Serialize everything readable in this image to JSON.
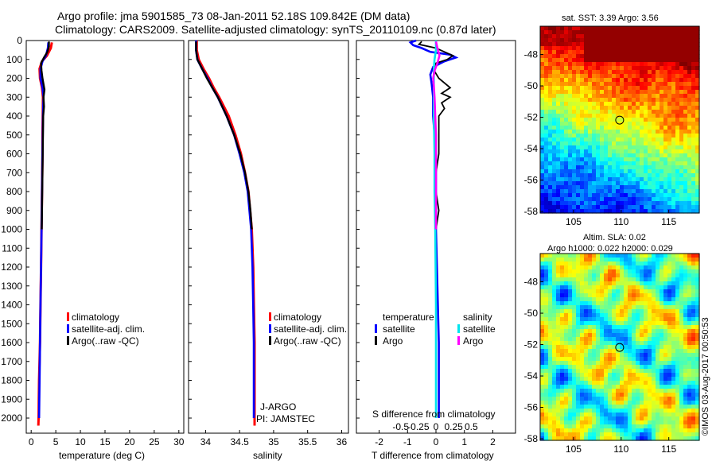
{
  "header": {
    "line1": "Argo profile: jma 5901585_73 08-Jan-2011 52.18S 109.842E (DM data)",
    "line2": "Climatology: CARS2009. Satellite-adjusted climatology: synTS_20110109.nc (0.87d later)"
  },
  "colors": {
    "climatology": "#ff0000",
    "satellite": "#0000ff",
    "argo": "#000000",
    "sal_satellite": "#00e5ee",
    "sal_argo": "#ff00ff"
  },
  "chart_data": [
    {
      "id": "temperature",
      "type": "line",
      "xlabel": "temperature (deg C)",
      "ylabel": "",
      "xlim": [
        -1,
        31
      ],
      "ylim": [
        2080,
        0
      ],
      "xticks": [
        0,
        5,
        10,
        15,
        20,
        25,
        30
      ],
      "yticks": [
        0,
        100,
        200,
        300,
        400,
        500,
        600,
        700,
        800,
        900,
        1000,
        1100,
        1200,
        1300,
        1400,
        1500,
        1600,
        1700,
        1800,
        1900,
        2000
      ],
      "legend": [
        "climatology",
        "satellite-adj. clim.",
        "Argo(..raw -QC)"
      ],
      "series": [
        {
          "name": "climatology",
          "depth": [
            10,
            40,
            80,
            110,
            150,
            200,
            250,
            300,
            400,
            500,
            600,
            800,
            1000,
            1200,
            1400,
            1600,
            1800,
            2000,
            2040
          ],
          "values": [
            4.2,
            4.0,
            3.2,
            2.2,
            1.7,
            1.8,
            2.2,
            2.4,
            2.35,
            2.3,
            2.3,
            2.2,
            2.1,
            2.0,
            1.9,
            1.8,
            1.6,
            1.5,
            1.45
          ]
        },
        {
          "name": "satellite-adj. clim.",
          "depth": [
            10,
            40,
            80,
            110,
            150,
            200,
            250,
            300,
            400,
            500,
            600,
            800,
            1000,
            1200,
            1400,
            1600,
            1800,
            2000
          ],
          "values": [
            3.5,
            3.4,
            3.0,
            2.3,
            1.9,
            1.9,
            2.3,
            2.5,
            2.4,
            2.35,
            2.3,
            2.2,
            2.1,
            2.0,
            1.9,
            1.8,
            1.7,
            1.6
          ]
        },
        {
          "name": "Argo(..raw -QC)",
          "depth": [
            5,
            30,
            60,
            90,
            120,
            160,
            200,
            260,
            300,
            350,
            400,
            500,
            600,
            700,
            800,
            900,
            1000
          ],
          "values": [
            3.6,
            3.6,
            3.3,
            2.6,
            2.0,
            2.1,
            2.3,
            2.7,
            2.5,
            2.6,
            2.45,
            2.4,
            2.35,
            2.3,
            2.25,
            2.2,
            2.15
          ]
        }
      ]
    },
    {
      "id": "salinity",
      "type": "line",
      "xlabel": "salinity",
      "xlim": [
        33.75,
        36.1
      ],
      "ylim": [
        2080,
        0
      ],
      "xticks": [
        34,
        34.5,
        35,
        35.5,
        36
      ],
      "xticklabels": [
        "34",
        "34.5",
        "35",
        "35.5",
        "36"
      ],
      "legend": [
        "climatology",
        "satellite-adj. clim.",
        "Argo(..raw -QC)"
      ],
      "annotation": [
        "J-ARGO",
        "PI: JAMSTEC"
      ],
      "series": [
        {
          "name": "climatology",
          "depth": [
            0,
            50,
            100,
            150,
            200,
            250,
            300,
            400,
            500,
            600,
            700,
            800,
            1000,
            1200,
            1400,
            1600,
            1800,
            2000,
            2040
          ],
          "values": [
            33.87,
            33.87,
            33.9,
            33.97,
            34.05,
            34.12,
            34.2,
            34.34,
            34.44,
            34.52,
            34.58,
            34.63,
            34.68,
            34.7,
            34.71,
            34.72,
            34.72,
            34.72,
            34.72
          ]
        },
        {
          "name": "satellite-adj. clim.",
          "depth": [
            0,
            50,
            100,
            150,
            200,
            250,
            300,
            400,
            500,
            600,
            700,
            800,
            1000,
            1200,
            1400,
            1600,
            1800,
            2000
          ],
          "values": [
            33.86,
            33.86,
            33.88,
            33.95,
            34.03,
            34.1,
            34.18,
            34.31,
            34.42,
            34.5,
            34.57,
            34.62,
            34.67,
            34.69,
            34.7,
            34.71,
            34.71,
            34.71
          ]
        },
        {
          "name": "Argo(..raw -QC)",
          "depth": [
            5,
            50,
            100,
            150,
            200,
            250,
            300,
            400,
            500,
            600,
            700,
            800,
            900,
            1000
          ],
          "values": [
            33.86,
            33.86,
            33.88,
            33.95,
            34.02,
            34.1,
            34.18,
            34.31,
            34.42,
            34.51,
            34.58,
            34.63,
            34.66,
            34.68
          ]
        }
      ]
    },
    {
      "id": "difference",
      "type": "line",
      "xlabel": "T difference from climatology",
      "xlabel2": "S difference from climatology",
      "xlim": [
        -2.8,
        2.8
      ],
      "xticks": [
        -2,
        -1,
        0,
        1,
        2
      ],
      "sticks": [
        -0.5,
        -0.25,
        0,
        0.25,
        0.5
      ],
      "sticklabels": [
        "-0.5",
        "-0.25",
        "0",
        "0.25",
        "0.5"
      ],
      "ylim": [
        2080,
        0
      ],
      "legend_headers": [
        "temperature",
        "salinity"
      ],
      "legend": [
        "satellite",
        "Argo",
        "satellite",
        "Argo"
      ],
      "series": [
        {
          "name": "temperature satellite",
          "depth": [
            0,
            10,
            25,
            40,
            60,
            75,
            90,
            110,
            140,
            180,
            230,
            300,
            400,
            600,
            800,
            1000,
            1300,
            1600,
            2000
          ],
          "values": [
            -0.7,
            -0.9,
            -0.8,
            -0.5,
            -0.2,
            0.5,
            0.7,
            0.3,
            -0.1,
            -0.2,
            -0.15,
            -0.1,
            -0.1,
            0.0,
            0.0,
            0.0,
            0.05,
            0.1,
            0.1
          ]
        },
        {
          "name": "temperature Argo",
          "depth": [
            5,
            20,
            40,
            60,
            80,
            100,
            120,
            150,
            200,
            250,
            280,
            300,
            330,
            360,
            400,
            500,
            600,
            700,
            800,
            900,
            1000
          ],
          "values": [
            -0.5,
            -0.6,
            0.0,
            0.3,
            0.6,
            0.4,
            0.0,
            -0.1,
            0.1,
            0.5,
            0.2,
            0.5,
            0.2,
            0.3,
            0.1,
            0.1,
            0.1,
            0.0,
            0.0,
            0.1,
            0.0
          ]
        },
        {
          "name": "salinity satellite",
          "depth": [
            0,
            50,
            100,
            150,
            200,
            300,
            400,
            600,
            800,
            1000,
            1400,
            1800,
            2000
          ],
          "values": [
            0.0,
            0.0,
            -0.02,
            -0.03,
            -0.03,
            -0.03,
            -0.03,
            -0.02,
            -0.02,
            -0.01,
            0.0,
            0.0,
            0.0
          ]
        },
        {
          "name": "salinity Argo",
          "depth": [
            5,
            40,
            80,
            120,
            160,
            200,
            240,
            300,
            400,
            500,
            600,
            800,
            1000
          ],
          "values": [
            0.0,
            0.02,
            0.05,
            0.02,
            -0.02,
            -0.04,
            -0.03,
            -0.02,
            -0.01,
            0.0,
            0.0,
            0.0,
            0.0
          ]
        }
      ]
    },
    {
      "id": "sst-map",
      "type": "heatmap",
      "title": "sat. SST: 3.39 Argo: 3.56",
      "xlim": [
        101.5,
        118.2
      ],
      "ylim": [
        -58.1,
        -46.2
      ],
      "xticks": [
        105,
        110,
        115
      ],
      "yticks": [
        -48,
        -50,
        -52,
        -54,
        -56,
        -58
      ],
      "marker": [
        109.84,
        -52.18
      ]
    },
    {
      "id": "sla-map",
      "type": "heatmap",
      "title1": "Altim. SLA: 0.02",
      "title2": "Argo h1000: 0.022 h2000: 0.029",
      "xlim": [
        101.5,
        118.2
      ],
      "ylim": [
        -58.1,
        -46.2
      ],
      "xticks": [
        105,
        110,
        115
      ],
      "yticks": [
        -48,
        -50,
        -52,
        -54,
        -56,
        -58
      ],
      "marker": [
        109.84,
        -52.18
      ]
    }
  ],
  "footer": {
    "stamp": "©IMOS 03-Aug-2017 00:50:53"
  }
}
